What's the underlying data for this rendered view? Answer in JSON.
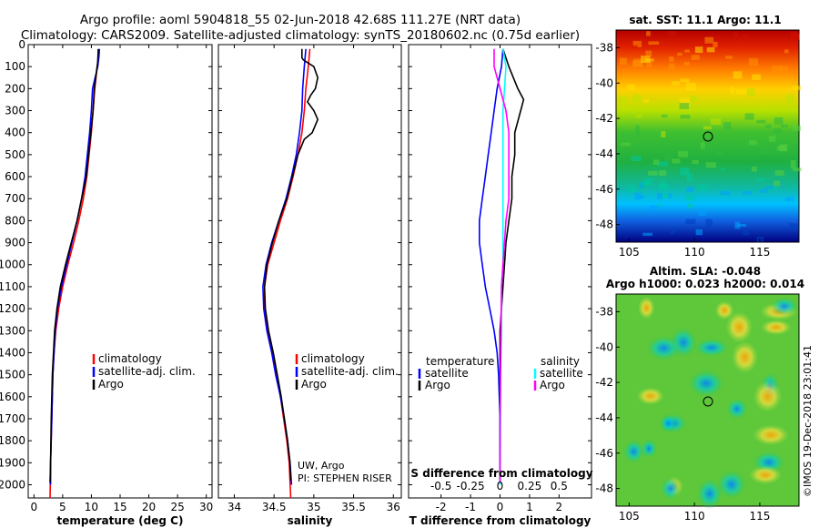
{
  "header": {
    "line1": "Argo profile: aoml 5904818_55 02-Jun-2018 42.68S 111.27E (NRT data)",
    "line2": "Climatology: CARS2009. Satellite-adjusted climatology: synTS_20180602.nc (0.75d earlier)"
  },
  "colors": {
    "climatology": "#ff0000",
    "satellite": "#0000ff",
    "argo": "#000000",
    "sat_salinity": "#00ffff",
    "argo_salinity": "#ff00ff"
  },
  "chart_data": [
    {
      "type": "line",
      "name": "temperature-profile",
      "xlabel": "temperature (deg C)",
      "xlim": [
        -1,
        31
      ],
      "ylim": [
        2060,
        0
      ],
      "xticks": [
        0,
        5,
        10,
        15,
        20,
        25,
        30
      ],
      "yticks": [
        0,
        100,
        200,
        300,
        400,
        500,
        600,
        700,
        800,
        900,
        1000,
        1100,
        1200,
        1300,
        1400,
        1500,
        1600,
        1700,
        1800,
        1900,
        2000
      ],
      "legend": [
        "climatology",
        "satellite-adj. clim.",
        "Argo"
      ],
      "series": [
        {
          "name": "climatology",
          "color": "#ff0000",
          "points": [
            [
              11.3,
              20
            ],
            [
              11.2,
              60
            ],
            [
              11.0,
              100
            ],
            [
              10.6,
              200
            ],
            [
              10.3,
              300
            ],
            [
              10.0,
              400
            ],
            [
              9.6,
              500
            ],
            [
              9.2,
              600
            ],
            [
              8.6,
              700
            ],
            [
              7.8,
              800
            ],
            [
              6.9,
              900
            ],
            [
              5.9,
              1000
            ],
            [
              5.0,
              1100
            ],
            [
              4.3,
              1200
            ],
            [
              3.8,
              1300
            ],
            [
              3.5,
              1400
            ],
            [
              3.3,
              1500
            ],
            [
              3.1,
              1700
            ],
            [
              2.9,
              1900
            ],
            [
              2.8,
              2060
            ]
          ]
        },
        {
          "name": "satellite-adj. clim.",
          "color": "#0000ff",
          "points": [
            [
              11.4,
              20
            ],
            [
              11.3,
              60
            ],
            [
              11.1,
              100
            ],
            [
              10.2,
              200
            ],
            [
              10.0,
              300
            ],
            [
              9.7,
              400
            ],
            [
              9.3,
              500
            ],
            [
              8.9,
              600
            ],
            [
              8.3,
              700
            ],
            [
              7.5,
              800
            ],
            [
              6.6,
              900
            ],
            [
              5.7,
              1000
            ],
            [
              4.8,
              1100
            ],
            [
              4.1,
              1200
            ],
            [
              3.7,
              1300
            ],
            [
              3.5,
              1400
            ],
            [
              3.3,
              1500
            ],
            [
              3.1,
              1700
            ],
            [
              2.9,
              1900
            ],
            [
              2.9,
              2000
            ]
          ]
        },
        {
          "name": "Argo",
          "color": "#000000",
          "points": [
            [
              11.2,
              20
            ],
            [
              11.1,
              80
            ],
            [
              10.9,
              120
            ],
            [
              10.5,
              200
            ],
            [
              10.3,
              300
            ],
            [
              9.9,
              400
            ],
            [
              9.5,
              500
            ],
            [
              9.1,
              600
            ],
            [
              8.3,
              700
            ],
            [
              7.5,
              800
            ],
            [
              6.5,
              900
            ],
            [
              5.5,
              1000
            ],
            [
              4.6,
              1100
            ],
            [
              4.0,
              1200
            ],
            [
              3.6,
              1300
            ],
            [
              3.4,
              1400
            ],
            [
              3.2,
              1500
            ],
            [
              3.0,
              1700
            ],
            [
              2.9,
              1900
            ],
            [
              2.8,
              1990
            ]
          ]
        }
      ]
    },
    {
      "type": "line",
      "name": "salinity-profile",
      "xlabel": "salinity",
      "xlim": [
        33.8,
        36.1
      ],
      "ylim": [
        2060,
        0
      ],
      "xticks": [
        34,
        34.5,
        35,
        35.5,
        36
      ],
      "xticklabels": [
        "34",
        "34.5",
        "35",
        "35.5",
        "36"
      ],
      "legend": [
        "climatology",
        "satellite-adj. clim.",
        "Argo"
      ],
      "annotation": [
        "UW, Argo",
        "PI: STEPHEN RISER"
      ],
      "series": [
        {
          "name": "climatology",
          "color": "#ff0000",
          "points": [
            [
              34.95,
              20
            ],
            [
              34.93,
              100
            ],
            [
              34.9,
              200
            ],
            [
              34.88,
              300
            ],
            [
              34.85,
              400
            ],
            [
              34.8,
              500
            ],
            [
              34.74,
              600
            ],
            [
              34.67,
              700
            ],
            [
              34.58,
              800
            ],
            [
              34.5,
              900
            ],
            [
              34.42,
              1000
            ],
            [
              34.38,
              1100
            ],
            [
              34.38,
              1200
            ],
            [
              34.42,
              1300
            ],
            [
              34.48,
              1400
            ],
            [
              34.53,
              1500
            ],
            [
              34.58,
              1600
            ],
            [
              34.62,
              1700
            ],
            [
              34.66,
              1800
            ],
            [
              34.69,
              1900
            ],
            [
              34.71,
              2060
            ]
          ]
        },
        {
          "name": "satellite-adj. clim.",
          "color": "#0000ff",
          "points": [
            [
              34.9,
              20
            ],
            [
              34.88,
              100
            ],
            [
              34.86,
              200
            ],
            [
              34.85,
              300
            ],
            [
              34.82,
              400
            ],
            [
              34.78,
              500
            ],
            [
              34.72,
              600
            ],
            [
              34.65,
              700
            ],
            [
              34.56,
              800
            ],
            [
              34.47,
              900
            ],
            [
              34.4,
              1000
            ],
            [
              34.36,
              1100
            ],
            [
              34.37,
              1200
            ],
            [
              34.41,
              1300
            ],
            [
              34.47,
              1400
            ],
            [
              34.52,
              1500
            ],
            [
              34.58,
              1600
            ],
            [
              34.63,
              1700
            ],
            [
              34.67,
              1800
            ],
            [
              34.7,
              1900
            ],
            [
              34.72,
              2000
            ]
          ]
        },
        {
          "name": "Argo",
          "color": "#000000",
          "points": [
            [
              34.85,
              20
            ],
            [
              34.85,
              60
            ],
            [
              34.87,
              70
            ],
            [
              35.0,
              100
            ],
            [
              35.05,
              150
            ],
            [
              35.02,
              200
            ],
            [
              34.96,
              230
            ],
            [
              34.92,
              260
            ],
            [
              35.0,
              300
            ],
            [
              35.05,
              340
            ],
            [
              34.98,
              400
            ],
            [
              34.88,
              430
            ],
            [
              34.8,
              500
            ],
            [
              34.73,
              600
            ],
            [
              34.66,
              700
            ],
            [
              34.56,
              800
            ],
            [
              34.48,
              900
            ],
            [
              34.41,
              1000
            ],
            [
              34.38,
              1100
            ],
            [
              34.39,
              1200
            ],
            [
              34.43,
              1300
            ],
            [
              34.49,
              1400
            ],
            [
              34.54,
              1500
            ],
            [
              34.59,
              1600
            ],
            [
              34.63,
              1700
            ],
            [
              34.67,
              1800
            ],
            [
              34.7,
              1900
            ],
            [
              34.71,
              1980
            ]
          ]
        }
      ]
    },
    {
      "type": "line",
      "name": "difference-profile",
      "xlabel": "T difference from climatology",
      "xlim": [
        -3.1,
        3.1
      ],
      "ylim": [
        2060,
        0
      ],
      "xticks": [
        -2,
        -1,
        0,
        1,
        2
      ],
      "xticklabels": [
        "-2",
        "-1",
        "0",
        "1",
        "2"
      ],
      "sticklabel_title": "S difference from climatology",
      "sticks": [
        -0.5,
        -0.25,
        0,
        0.25,
        0.5
      ],
      "sticklabels": [
        "-0.5",
        "-0.25",
        "0",
        "0.25",
        "0.5"
      ],
      "legend_left": [
        "temperature",
        "satellite",
        "Argo"
      ],
      "legend_right": [
        "salinity",
        "satellite",
        "Argo"
      ],
      "series": [
        {
          "name": "temperature satellite",
          "color": "#0000ff",
          "points": [
            [
              0.1,
              20
            ],
            [
              0.05,
              100
            ],
            [
              -0.1,
              200
            ],
            [
              -0.2,
              300
            ],
            [
              -0.3,
              400
            ],
            [
              -0.4,
              500
            ],
            [
              -0.5,
              600
            ],
            [
              -0.6,
              700
            ],
            [
              -0.7,
              800
            ],
            [
              -0.7,
              900
            ],
            [
              -0.6,
              1000
            ],
            [
              -0.5,
              1100
            ],
            [
              -0.35,
              1200
            ],
            [
              -0.2,
              1300
            ],
            [
              -0.1,
              1400
            ],
            [
              -0.05,
              1500
            ],
            [
              0,
              1700
            ],
            [
              0,
              2000
            ]
          ]
        },
        {
          "name": "temperature Argo",
          "color": "#000000",
          "points": [
            [
              0.1,
              20
            ],
            [
              0.3,
              100
            ],
            [
              0.6,
              200
            ],
            [
              0.8,
              250
            ],
            [
              0.7,
              300
            ],
            [
              0.5,
              400
            ],
            [
              0.5,
              500
            ],
            [
              0.4,
              600
            ],
            [
              0.4,
              700
            ],
            [
              0.3,
              800
            ],
            [
              0.2,
              900
            ],
            [
              0.15,
              1000
            ],
            [
              0.1,
              1100
            ],
            [
              0.05,
              1200
            ],
            [
              0,
              1300
            ],
            [
              0,
              1500
            ],
            [
              0,
              1700
            ],
            [
              0,
              1990
            ]
          ]
        },
        {
          "name": "salinity satellite",
          "color": "#00ffff",
          "points": [
            [
              0.1,
              20
            ],
            [
              0.2,
              100
            ],
            [
              0.15,
              200
            ],
            [
              0.1,
              300
            ],
            [
              0.1,
              400
            ],
            [
              0.1,
              500
            ],
            [
              0.1,
              600
            ],
            [
              0.1,
              700
            ],
            [
              0.1,
              800
            ],
            [
              0.1,
              900
            ],
            [
              0.1,
              1000
            ],
            [
              0.05,
              1100
            ],
            [
              0.05,
              1300
            ],
            [
              0.02,
              1500
            ],
            [
              0.02,
              1700
            ],
            [
              0,
              2000
            ]
          ]
        },
        {
          "name": "salinity Argo",
          "color": "#ff00ff",
          "points": [
            [
              -0.2,
              20
            ],
            [
              -0.2,
              100
            ],
            [
              -0.1,
              150
            ],
            [
              0.0,
              200
            ],
            [
              0.2,
              300
            ],
            [
              0.3,
              400
            ],
            [
              0.3,
              500
            ],
            [
              0.3,
              600
            ],
            [
              0.3,
              700
            ],
            [
              0.2,
              800
            ],
            [
              0.15,
              900
            ],
            [
              0.1,
              1000
            ],
            [
              0.05,
              1100
            ],
            [
              0.03,
              1300
            ],
            [
              0.02,
              1500
            ],
            [
              0.0,
              1700
            ],
            [
              0.0,
              1990
            ]
          ]
        }
      ]
    },
    {
      "type": "heatmap",
      "name": "sst-map",
      "title": "sat. SST: 11.1 Argo: 11.1",
      "xticks": [
        105,
        110,
        115
      ],
      "yticks": [
        -38,
        -40,
        -42,
        -44,
        -46,
        -48
      ],
      "xlim": [
        104,
        118
      ],
      "ylim": [
        -49,
        -37
      ],
      "marker": [
        111.27,
        -42.68
      ]
    },
    {
      "type": "heatmap",
      "name": "sla-map",
      "title": [
        "Altim. SLA: -0.048",
        "Argo h1000: 0.023 h2000: 0.014"
      ],
      "xticks": [
        105,
        110,
        115
      ],
      "yticks": [
        -38,
        -40,
        -42,
        -44,
        -46,
        -48
      ],
      "xlim": [
        104,
        118
      ],
      "ylim": [
        -49,
        -37
      ],
      "marker": [
        111.27,
        -42.68
      ]
    }
  ],
  "watermark": "©IMOS 19-Dec-2018 23:01:41"
}
